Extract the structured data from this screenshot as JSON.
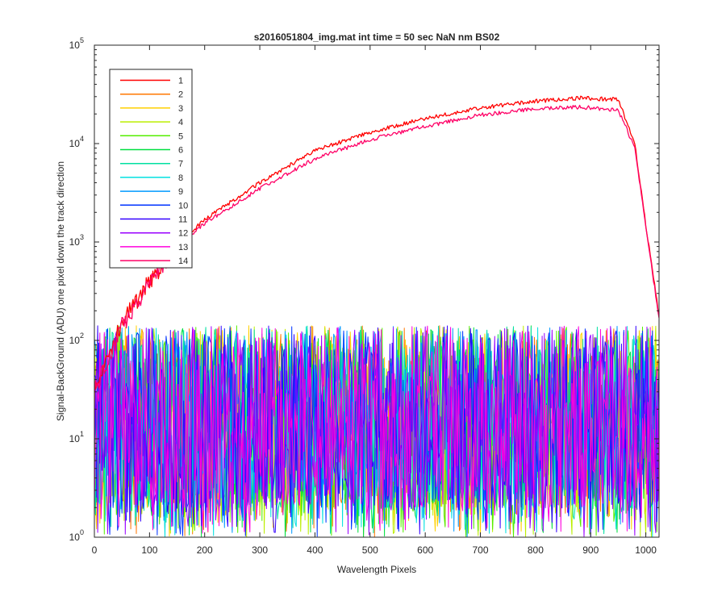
{
  "chart_data": {
    "type": "line",
    "title": "s2016051804_img.mat int time = 50 sec  NaN nm BS02",
    "xlabel": "Wavelength Pixels",
    "ylabel": "Signal-BackGround (ADU) one pixel down the track direction",
    "xlim": [
      0,
      1024
    ],
    "ylim": [
      1,
      100000
    ],
    "yscale": "log",
    "x_ticks": [
      "0",
      "100",
      "200",
      "300",
      "400",
      "500",
      "600",
      "700",
      "800",
      "900",
      "1000"
    ],
    "y_ticks": [
      {
        "base": "10",
        "exp": "0"
      },
      {
        "base": "10",
        "exp": "1"
      },
      {
        "base": "10",
        "exp": "2"
      },
      {
        "base": "10",
        "exp": "3"
      },
      {
        "base": "10",
        "exp": "4"
      },
      {
        "base": "10",
        "exp": "5"
      }
    ],
    "legend_position": "top-left",
    "grid": false,
    "series": [
      {
        "name": "1",
        "color": "#ff0000",
        "kind": "signal",
        "points": [
          [
            0,
            30
          ],
          [
            20,
            60
          ],
          [
            50,
            150
          ],
          [
            100,
            400
          ],
          [
            150,
            900
          ],
          [
            200,
            1700
          ],
          [
            300,
            4000
          ],
          [
            400,
            8500
          ],
          [
            500,
            13000
          ],
          [
            600,
            18000
          ],
          [
            700,
            23000
          ],
          [
            800,
            27000
          ],
          [
            880,
            29000
          ],
          [
            950,
            28000
          ],
          [
            980,
            10000
          ],
          [
            1000,
            1500
          ],
          [
            1024,
            180
          ]
        ]
      },
      {
        "name": "2",
        "color": "#ff7700",
        "kind": "noise",
        "points": []
      },
      {
        "name": "3",
        "color": "#ffd000",
        "kind": "noise",
        "points": []
      },
      {
        "name": "4",
        "color": "#bbee00",
        "kind": "noise",
        "points": []
      },
      {
        "name": "5",
        "color": "#55ee00",
        "kind": "noise",
        "points": []
      },
      {
        "name": "6",
        "color": "#00e040",
        "kind": "noise",
        "points": []
      },
      {
        "name": "7",
        "color": "#00e0a0",
        "kind": "noise",
        "points": []
      },
      {
        "name": "8",
        "color": "#00e0e0",
        "kind": "noise",
        "points": []
      },
      {
        "name": "9",
        "color": "#0099ff",
        "kind": "noise",
        "points": []
      },
      {
        "name": "10",
        "color": "#0033ff",
        "kind": "noise",
        "points": []
      },
      {
        "name": "11",
        "color": "#3300ff",
        "kind": "noise",
        "points": []
      },
      {
        "name": "12",
        "color": "#9900ff",
        "kind": "noise",
        "points": []
      },
      {
        "name": "13",
        "color": "#ff00dd",
        "kind": "noise",
        "points": []
      },
      {
        "name": "14",
        "color": "#ff0066",
        "kind": "signal",
        "points": [
          [
            0,
            30
          ],
          [
            20,
            55
          ],
          [
            50,
            140
          ],
          [
            100,
            380
          ],
          [
            150,
            850
          ],
          [
            200,
            1550
          ],
          [
            300,
            3500
          ],
          [
            400,
            7000
          ],
          [
            500,
            11000
          ],
          [
            600,
            15000
          ],
          [
            700,
            19500
          ],
          [
            800,
            22500
          ],
          [
            880,
            23500
          ],
          [
            950,
            22000
          ],
          [
            980,
            9000
          ],
          [
            1000,
            1400
          ],
          [
            1024,
            170
          ]
        ]
      }
    ]
  }
}
